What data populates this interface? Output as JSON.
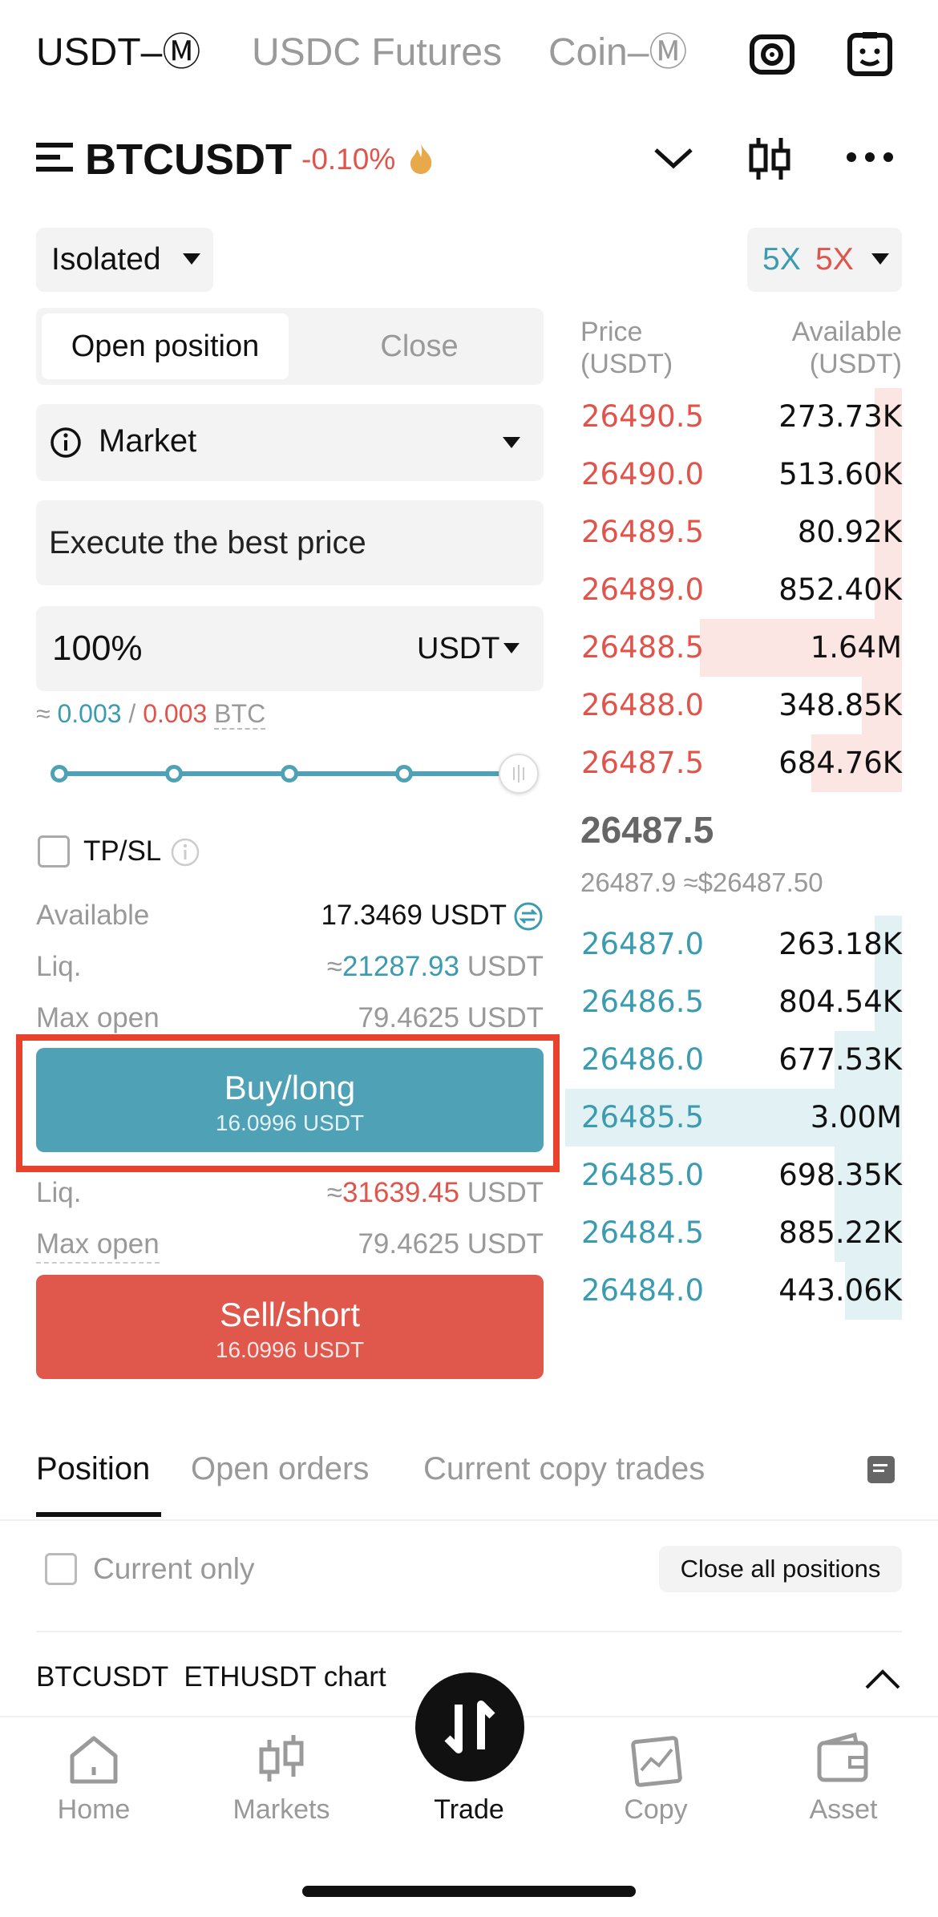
{
  "top_tabs": [
    "USDT–Ⓜ",
    "USDC Futures",
    "Coin–Ⓜ"
  ],
  "header": {
    "symbol": "BTCUSDT",
    "change": "-0.10%",
    "icons": [
      "menu-icon",
      "fire-icon",
      "chevron-down-icon",
      "candlestick-icon",
      "more-icon",
      "camera-icon",
      "assistant-icon"
    ]
  },
  "margin_mode": "Isolated",
  "leverage": {
    "long": "5X",
    "short": "5X"
  },
  "position_tabs": {
    "open": "Open position",
    "close": "Close"
  },
  "order_type": "Market",
  "price_placeholder": "Execute the best price",
  "amount": {
    "value": "100%",
    "unit": "USDT"
  },
  "estimate": {
    "prefix": "≈",
    "long": "0.003",
    "sep": "/",
    "short": "0.003",
    "asset": "BTC"
  },
  "slider_percent": 100,
  "tpsl_label": "TP/SL",
  "long_info": {
    "available_label": "Available",
    "available_value": "17.3469 USDT",
    "liq_label": "Liq.",
    "liq_prefix": "≈",
    "liq_value": "21287.93",
    "liq_unit": "USDT",
    "max_open_label": "Max open",
    "max_open_value": "79.4625 USDT"
  },
  "buy_button": {
    "label": "Buy/long",
    "sub": "16.0996 USDT"
  },
  "short_info": {
    "liq_label": "Liq.",
    "liq_prefix": "≈",
    "liq_value": "31639.45",
    "liq_unit": "USDT",
    "max_open_label": "Max open",
    "max_open_value": "79.4625 USDT"
  },
  "sell_button": {
    "label": "Sell/short",
    "sub": "16.0996 USDT"
  },
  "orderbook": {
    "price_header": "Price\n(USDT)",
    "qty_header": "Available\n(USDT)",
    "asks": [
      {
        "price": "26490.5",
        "qty": "273.73K",
        "depth": 0.08
      },
      {
        "price": "26490.0",
        "qty": "513.60K",
        "depth": 0.08
      },
      {
        "price": "26489.5",
        "qty": "80.92K",
        "depth": 0.08
      },
      {
        "price": "26489.0",
        "qty": "852.40K",
        "depth": 0.08
      },
      {
        "price": "26488.5",
        "qty": "1.64M",
        "depth": 0.6
      },
      {
        "price": "26488.0",
        "qty": "348.85K",
        "depth": 0.12
      },
      {
        "price": "26487.5",
        "qty": "684.76K",
        "depth": 0.27
      }
    ],
    "last_price": "26487.5",
    "index_line": "26487.9 ≈$26487.50",
    "bids": [
      {
        "price": "26487.0",
        "qty": "263.18K",
        "depth": 0.08
      },
      {
        "price": "26486.5",
        "qty": "804.54K",
        "depth": 0.08
      },
      {
        "price": "26486.0",
        "qty": "677.53K",
        "depth": 0.2
      },
      {
        "price": "26485.5",
        "qty": "3.00M",
        "depth": 1.0
      },
      {
        "price": "26485.0",
        "qty": "698.35K",
        "depth": 0.2
      },
      {
        "price": "26484.5",
        "qty": "885.22K",
        "depth": 0.2
      },
      {
        "price": "26484.0",
        "qty": "443.06K",
        "depth": 0.17
      }
    ]
  },
  "bottom_section_tabs": [
    "Position",
    "Open orders",
    "Current copy trades"
  ],
  "current_only_label": "Current only",
  "close_all_label": "Close all positions",
  "chart_bar": {
    "text1": "BTCUSDT",
    "text2": "ETHUSDT chart"
  },
  "nav": [
    {
      "label": "Home",
      "icon": "home-icon"
    },
    {
      "label": "Markets",
      "icon": "markets-icon"
    },
    {
      "label": "Trade",
      "icon": "trade-icon"
    },
    {
      "label": "Copy",
      "icon": "copy-icon"
    },
    {
      "label": "Asset",
      "icon": "wallet-icon"
    }
  ],
  "colors": {
    "teal": "#4fa1b5",
    "red": "#e0574b",
    "highlight": "#e8412c"
  }
}
